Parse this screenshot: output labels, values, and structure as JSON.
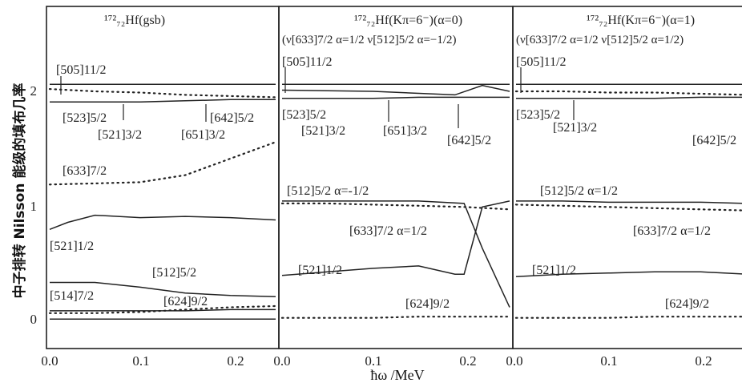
{
  "chart_data": {
    "type": "line",
    "ylabel": "中子排转 Nilsson 能级的填布几率",
    "xlabel": "ħω /MeV",
    "ylim": [
      -0.25,
      2.65
    ],
    "xlim": [
      0,
      0.25
    ],
    "xticks": [
      "0.0",
      "0.1",
      "0.2"
    ],
    "yticks": [
      "0",
      "1",
      "2"
    ],
    "grid": false,
    "panels": [
      {
        "title": "¹⁷²₇₂Hf(gsb)",
        "subtitle": "",
        "labels": [
          "[505]11/2",
          "[523]5/2",
          "[521]3/2",
          "[651]3/2",
          "[642]5/2",
          "[633]7/2",
          "[521]1/2",
          "[512]5/2",
          "[514]7/2",
          "[624]9/2"
        ],
        "series": [
          {
            "label": "[505]11/2",
            "style": "solid",
            "x": [
              0,
              0.05,
              0.1,
              0.15,
              0.2,
              0.25
            ],
            "y": [
              1.99,
              1.99,
              1.99,
              1.99,
              1.99,
              1.99
            ]
          },
          {
            "label": "[523]5/2",
            "style": "solid",
            "x": [
              0,
              0.05,
              0.1,
              0.15,
              0.2,
              0.25
            ],
            "y": [
              1.84,
              1.84,
              1.84,
              1.85,
              1.86,
              1.86
            ]
          },
          {
            "label": "[642]5/2",
            "style": "dotted",
            "x": [
              0,
              0.05,
              0.1,
              0.15,
              0.2,
              0.25
            ],
            "y": [
              1.95,
              1.93,
              1.92,
              1.9,
              1.89,
              1.88
            ]
          },
          {
            "label": "[633]7/2",
            "style": "dotted",
            "x": [
              0,
              0.05,
              0.1,
              0.15,
              0.2,
              0.25
            ],
            "y": [
              1.14,
              1.15,
              1.16,
              1.22,
              1.36,
              1.5
            ]
          },
          {
            "label": "[521]1/2",
            "style": "solid",
            "x": [
              0,
              0.02,
              0.05,
              0.1,
              0.15,
              0.2,
              0.25
            ],
            "y": [
              0.76,
              0.82,
              0.88,
              0.86,
              0.87,
              0.86,
              0.84
            ]
          },
          {
            "label": "[512]5/2",
            "style": "solid",
            "x": [
              0,
              0.05,
              0.1,
              0.15,
              0.2,
              0.25
            ],
            "y": [
              0.31,
              0.31,
              0.27,
              0.22,
              0.2,
              0.19
            ]
          },
          {
            "label": "[514]7/2",
            "style": "solid",
            "x": [
              0,
              0.05,
              0.1,
              0.15,
              0.2,
              0.25
            ],
            "y": [
              0.07,
              0.07,
              0.07,
              0.07,
              0.08,
              0.08
            ]
          },
          {
            "label": "[624]9/2",
            "style": "dotted",
            "x": [
              0,
              0.05,
              0.1,
              0.15,
              0.2,
              0.25
            ],
            "y": [
              0.05,
              0.05,
              0.06,
              0.08,
              0.1,
              0.11
            ]
          },
          {
            "label": "0 baseline",
            "style": "solid",
            "x": [
              0,
              0.25
            ],
            "y": [
              0.0,
              0.0
            ]
          }
        ]
      },
      {
        "title": "¹⁷²₇₂Hf(Kπ=6⁻)(α=0)",
        "subtitle": "(ν[633]7/2 α=1/2 ν[512]5/2 α=−1/2)",
        "labels": [
          "[505]11/2",
          "[523]5/2",
          "[521]3/2",
          "[651]3/2",
          "[642]5/2",
          "[512]5/2 α=-1/2",
          "[633]7/2 α=1/2",
          "[521]1/2",
          "[624]9/2"
        ],
        "series": [
          {
            "label": "[505]11/2",
            "style": "solid",
            "x": [
              0,
              0.05,
              0.1,
              0.15,
              0.2,
              0.25
            ],
            "y": [
              1.99,
              1.99,
              1.99,
              1.99,
              1.99,
              1.99
            ]
          },
          {
            "label": "[523]5/2",
            "style": "solid",
            "x": [
              0,
              0.05,
              0.1,
              0.15,
              0.2,
              0.25
            ],
            "y": [
              1.87,
              1.87,
              1.87,
              1.88,
              1.88,
              1.88
            ]
          },
          {
            "label": "[642]5/2",
            "style": "solid",
            "x": [
              0,
              0.1,
              0.19,
              0.22,
              0.25
            ],
            "y": [
              1.94,
              1.93,
              1.9,
              1.98,
              1.93
            ]
          },
          {
            "label": "[512]5/2 α=-1/2",
            "style": "solid",
            "x": [
              0,
              0.05,
              0.1,
              0.15,
              0.2,
              0.22,
              0.25
            ],
            "y": [
              1.0,
              1.0,
              1.0,
              1.0,
              0.98,
              0.6,
              0.1
            ]
          },
          {
            "label": "[633]7/2 α=1/2",
            "style": "dotted",
            "x": [
              0,
              0.05,
              0.1,
              0.15,
              0.2,
              0.25
            ],
            "y": [
              0.98,
              0.98,
              0.97,
              0.96,
              0.95,
              0.93
            ]
          },
          {
            "label": "[521]1/2",
            "style": "solid",
            "x": [
              0,
              0.05,
              0.1,
              0.15,
              0.19,
              0.2,
              0.22,
              0.25
            ],
            "y": [
              0.37,
              0.4,
              0.43,
              0.45,
              0.38,
              0.38,
              0.95,
              1.0
            ]
          },
          {
            "label": "[624]9/2",
            "style": "dotted",
            "x": [
              0,
              0.05,
              0.1,
              0.15,
              0.2,
              0.25
            ],
            "y": [
              0.01,
              0.01,
              0.01,
              0.02,
              0.02,
              0.02
            ]
          }
        ]
      },
      {
        "title": "¹⁷²₇₂Hf(Kπ=6⁻)(α=1)",
        "subtitle": "(ν[633]7/2 α=1/2 ν[512]5/2 α=1/2)",
        "labels": [
          "[505]11/2",
          "[523]5/2",
          "[521]3/2",
          "[642]5/2",
          "[512]5/2 α=1/2",
          "[633]7/2 α=1/2",
          "[521]1/2",
          "[624]9/2"
        ],
        "series": [
          {
            "label": "[505]11/2",
            "style": "solid",
            "x": [
              0,
              0.05,
              0.1,
              0.15,
              0.2,
              0.25
            ],
            "y": [
              1.99,
              1.99,
              1.99,
              1.99,
              1.99,
              1.99
            ]
          },
          {
            "label": "[523]5/2",
            "style": "solid",
            "x": [
              0,
              0.05,
              0.1,
              0.15,
              0.2,
              0.25
            ],
            "y": [
              1.87,
              1.87,
              1.87,
              1.87,
              1.88,
              1.88
            ]
          },
          {
            "label": "[642]5/2",
            "style": "dotted",
            "x": [
              0,
              0.05,
              0.1,
              0.15,
              0.2,
              0.25
            ],
            "y": [
              1.93,
              1.93,
              1.92,
              1.92,
              1.91,
              1.9
            ]
          },
          {
            "label": "[512]5/2 α=1/2",
            "style": "solid",
            "x": [
              0,
              0.05,
              0.1,
              0.15,
              0.2,
              0.25
            ],
            "y": [
              1.0,
              1.0,
              0.99,
              0.99,
              0.99,
              0.98
            ]
          },
          {
            "label": "[633]7/2 α=1/2",
            "style": "dotted",
            "x": [
              0,
              0.05,
              0.1,
              0.15,
              0.2,
              0.25
            ],
            "y": [
              0.97,
              0.96,
              0.95,
              0.94,
              0.93,
              0.92
            ]
          },
          {
            "label": "[521]1/2",
            "style": "solid",
            "x": [
              0,
              0.05,
              0.1,
              0.15,
              0.2,
              0.25
            ],
            "y": [
              0.36,
              0.38,
              0.39,
              0.4,
              0.4,
              0.38
            ]
          },
          {
            "label": "[624]9/2",
            "style": "dotted",
            "x": [
              0,
              0.05,
              0.1,
              0.15,
              0.2,
              0.25
            ],
            "y": [
              0.01,
              0.01,
              0.01,
              0.02,
              0.02,
              0.02
            ]
          }
        ]
      }
    ]
  }
}
